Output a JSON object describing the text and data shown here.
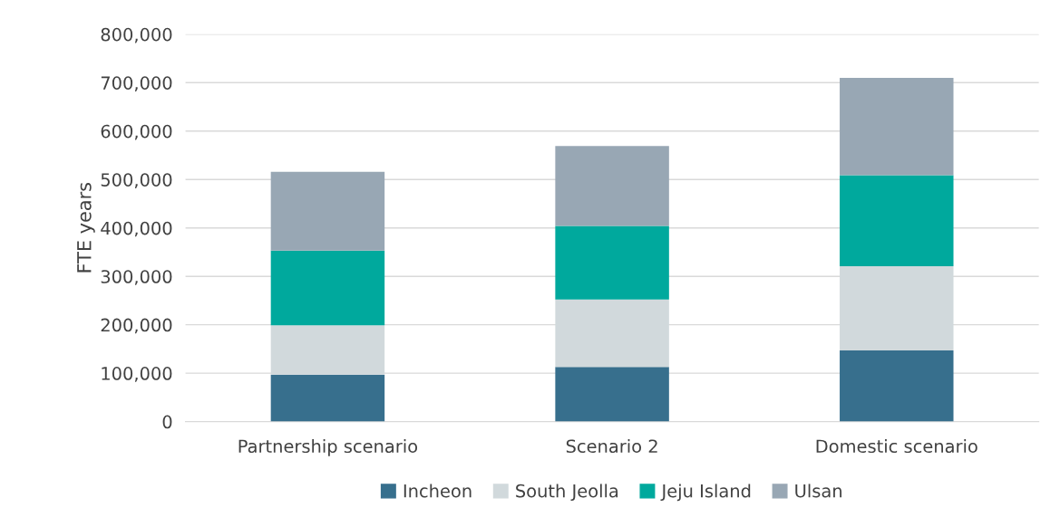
{
  "chart_data": {
    "type": "bar",
    "stacked": true,
    "ylabel": "FTE years",
    "categories": [
      "Partnership scenario",
      "Scenario 2",
      "Domestic scenario"
    ],
    "series": [
      {
        "name": "Incheon",
        "color": "#376f8d",
        "values": [
          97000,
          113000,
          147000
        ]
      },
      {
        "name": "South Jeolla",
        "color": "#d1d9dc",
        "values": [
          102000,
          139000,
          174000
        ]
      },
      {
        "name": "Jeju Island",
        "color": "#00a99d",
        "values": [
          154000,
          152000,
          188000
        ]
      },
      {
        "name": "Ulsan",
        "color": "#98a7b4",
        "values": [
          163000,
          165000,
          201000
        ]
      }
    ],
    "ylim": [
      0,
      800000
    ],
    "yticks": [
      {
        "value": 0,
        "label": "0"
      },
      {
        "value": 100000,
        "label": "100,000"
      },
      {
        "value": 200000,
        "label": "200,000"
      },
      {
        "value": 300000,
        "label": "300,000"
      },
      {
        "value": 400000,
        "label": "400,000"
      },
      {
        "value": 500000,
        "label": "500,000"
      },
      {
        "value": 600000,
        "label": "600,000"
      },
      {
        "value": 700000,
        "label": "700,000"
      },
      {
        "value": 800000,
        "label": "800,000"
      }
    ],
    "grid": "y",
    "legend": "bottom"
  }
}
